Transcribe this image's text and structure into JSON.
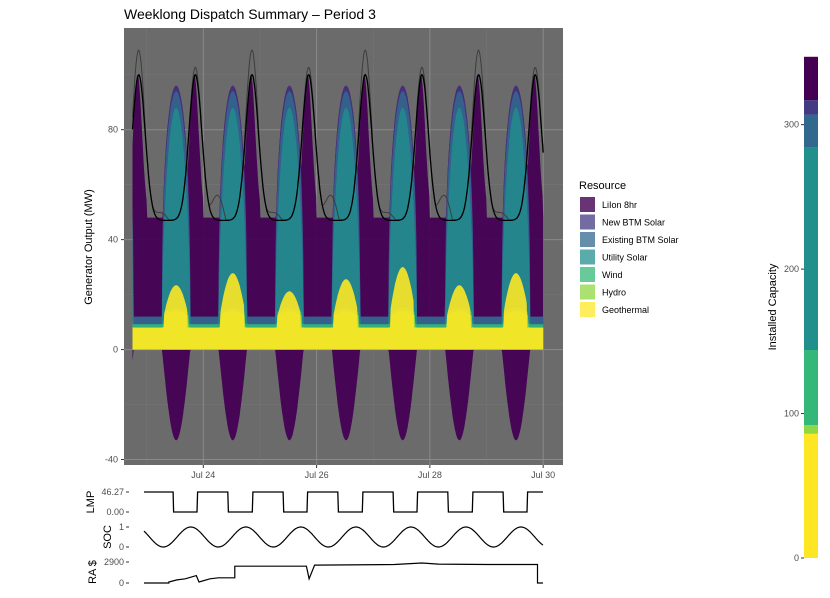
{
  "title": "Weeklong Dispatch Summary – Period  3",
  "chart_data": [
    {
      "type": "area",
      "title": "Weeklong Dispatch Summary – Period  3",
      "xlabel": "",
      "ylabel": "Generator Output (MW)",
      "x_ticks": [
        "Jul 24",
        "Jul 26",
        "Jul 28",
        "Jul 30"
      ],
      "y_ticks": [
        -40,
        0,
        40,
        80
      ],
      "ylim": [
        -42,
        117
      ],
      "xlim_days": [
        22.6,
        30.35
      ],
      "grid": true,
      "legend_title": "Resource",
      "legend_position": "right",
      "series": [
        {
          "name": "LiIon 8hr",
          "color": "#440154",
          "charge_depth_mw": -33,
          "peak_mw": 100
        },
        {
          "name": "New BTM Solar",
          "color": "#443a83",
          "peak_mw": 86
        },
        {
          "name": "Existing BTM Solar",
          "color": "#31688e",
          "peak_mw": 82
        },
        {
          "name": "Utility Solar",
          "color": "#21908c",
          "peak_mw": 80
        },
        {
          "name": "Wind",
          "color": "#35b779",
          "band_mw": [
            8,
            12
          ]
        },
        {
          "name": "Hydro",
          "color": "#8fd744",
          "peak_mw": 12
        },
        {
          "name": "Geothermal",
          "color": "#fde725",
          "baseline_mw": 8
        }
      ],
      "load_line": {
        "color": "#000000",
        "min_mw": 42,
        "max_mw": 100
      },
      "gross_load_line": {
        "color": "#3d3d3d",
        "max_mw": 109
      }
    },
    {
      "type": "line",
      "ylabel": "LMP",
      "y_ticks": [
        "0.00",
        "46.27"
      ],
      "values_range": [
        0,
        46.27
      ]
    },
    {
      "type": "line",
      "ylabel": "SOC",
      "y_ticks": [
        "0",
        "1"
      ],
      "values_range": [
        0,
        1
      ]
    },
    {
      "type": "line",
      "ylabel": "RA $",
      "y_ticks": [
        "0",
        "2900"
      ],
      "values_range": [
        0,
        2900
      ]
    },
    {
      "type": "bar",
      "stacked": true,
      "ylabel": "Installed Capacity",
      "y_ticks": [
        0,
        100,
        200,
        300
      ],
      "ylim": [
        0,
        360
      ],
      "segments": [
        {
          "name": "Geothermal",
          "value": 86,
          "color": "#fde725"
        },
        {
          "name": "Hydro",
          "value": 6,
          "color": "#8fd744"
        },
        {
          "name": "Wind",
          "value": 52,
          "color": "#35b779"
        },
        {
          "name": "Utility Solar",
          "value": 140,
          "color": "#21908c"
        },
        {
          "name": "Existing BTM Solar",
          "value": 23,
          "color": "#31688e"
        },
        {
          "name": "New BTM Solar",
          "value": 10,
          "color": "#443a83"
        },
        {
          "name": "LiIon 8hr",
          "value": 30,
          "color": "#440154"
        }
      ]
    }
  ]
}
